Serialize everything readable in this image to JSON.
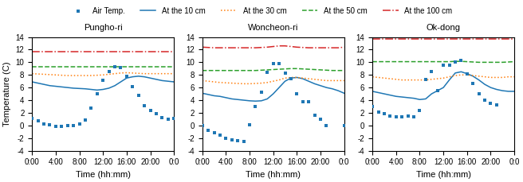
{
  "chart_data": [
    {
      "type": "line",
      "title": "Pungho-ri",
      "xlabel": "Time (hh:mm)",
      "ylabel": "Temperature (C)",
      "x": [
        0,
        1,
        2,
        3,
        4,
        5,
        6,
        7,
        8,
        9,
        10,
        11,
        12,
        13,
        14,
        15,
        16,
        17,
        18,
        19,
        20,
        21,
        22,
        23,
        24
      ],
      "xlim": [
        0,
        24
      ],
      "xticks": [
        {
          "value": 0,
          "label": "0:00"
        },
        {
          "value": 4,
          "label": "4:00"
        },
        {
          "value": 8,
          "label": "8:00"
        },
        {
          "value": 12,
          "label": "12:00"
        },
        {
          "value": 16,
          "label": "16:00"
        },
        {
          "value": 20,
          "label": "20:00"
        },
        {
          "value": 24,
          "label": "0:0"
        }
      ],
      "ylim": [
        -4,
        14
      ],
      "yticks": [
        -4,
        -2,
        0,
        2,
        4,
        6,
        8,
        10,
        12,
        14
      ],
      "legend": "upper center",
      "series": [
        {
          "name": "Air Temp.",
          "type": "scatter",
          "marker": "s",
          "x": [
            0,
            1,
            2,
            3,
            4,
            5,
            6,
            7,
            8,
            9,
            10,
            11,
            12,
            13,
            14,
            15,
            16,
            17,
            18,
            19,
            20,
            21,
            22,
            23,
            24
          ],
          "values": [
            1.1,
            0.7,
            0.2,
            0.1,
            -0.1,
            -0.1,
            0.0,
            0.0,
            0.2,
            0.8,
            2.8,
            5.0,
            7.1,
            8.5,
            9.3,
            9.2,
            7.8,
            6.1,
            4.7,
            3.1,
            2.4,
            1.9,
            1.2,
            1.0,
            1.1
          ]
        },
        {
          "name": "At the 10 cm",
          "type": "line",
          "line_style": "solid",
          "values": [
            6.9,
            6.7,
            6.5,
            6.3,
            6.2,
            6.1,
            6.0,
            5.9,
            5.85,
            5.8,
            5.7,
            5.6,
            5.7,
            5.9,
            6.3,
            6.9,
            7.5,
            7.7,
            7.8,
            7.7,
            7.5,
            7.3,
            7.1,
            7.0,
            6.9
          ]
        },
        {
          "name": "At the 30 cm",
          "type": "line",
          "line_style": "dotted",
          "values": [
            8.2,
            8.15,
            8.1,
            8.05,
            8.0,
            7.95,
            7.9,
            7.9,
            7.9,
            7.9,
            7.9,
            7.95,
            8.0,
            8.1,
            8.2,
            8.3,
            8.35,
            8.3,
            8.25,
            8.2,
            8.2,
            8.2,
            8.2,
            8.2,
            8.2
          ]
        },
        {
          "name": "At the 50 cm",
          "type": "line",
          "line_style": "dashed",
          "values": [
            9.3,
            9.3,
            9.3,
            9.3,
            9.3,
            9.3,
            9.3,
            9.3,
            9.3,
            9.3,
            9.3,
            9.3,
            9.3,
            9.3,
            9.3,
            9.3,
            9.3,
            9.3,
            9.3,
            9.3,
            9.3,
            9.3,
            9.3,
            9.3,
            9.3
          ]
        },
        {
          "name": "At the 100 cm",
          "type": "line",
          "line_style": "dashdot",
          "values": [
            11.7,
            11.7,
            11.7,
            11.7,
            11.7,
            11.7,
            11.7,
            11.7,
            11.7,
            11.7,
            11.7,
            11.7,
            11.7,
            11.7,
            11.7,
            11.7,
            11.7,
            11.7,
            11.7,
            11.7,
            11.7,
            11.7,
            11.7,
            11.7,
            11.7
          ]
        }
      ]
    },
    {
      "type": "line",
      "title": "Woncheon-ri",
      "xlabel": "Time (hh:mm)",
      "x": [
        0,
        1,
        2,
        3,
        4,
        5,
        6,
        7,
        8,
        9,
        10,
        11,
        12,
        13,
        14,
        15,
        16,
        17,
        18,
        19,
        20,
        21,
        22,
        23,
        24
      ],
      "xlim": [
        0,
        24
      ],
      "xticks": [
        {
          "value": 0,
          "label": "0:00"
        },
        {
          "value": 4,
          "label": "4:00"
        },
        {
          "value": 8,
          "label": "8:00"
        },
        {
          "value": 12,
          "label": "12:00"
        },
        {
          "value": 16,
          "label": "16:00"
        },
        {
          "value": 20,
          "label": "20:00"
        },
        {
          "value": 24,
          "label": "0:0"
        }
      ],
      "ylim": [
        -4,
        14
      ],
      "yticks": [
        -4,
        -2,
        0,
        2,
        4,
        6,
        8,
        10,
        12,
        14
      ],
      "legend": "upper center",
      "series": [
        {
          "name": "Air Temp.",
          "type": "scatter",
          "marker": "s",
          "x": [
            0,
            1,
            2,
            3,
            4,
            5,
            6,
            7,
            8,
            9,
            10,
            11,
            12,
            13,
            14,
            15,
            16,
            17,
            18,
            19,
            20,
            21,
            24
          ],
          "values": [
            0.0,
            -0.8,
            -1.1,
            -1.5,
            -2.0,
            -2.3,
            -2.4,
            -2.5,
            0.1,
            3.0,
            5.2,
            8.4,
            9.8,
            9.8,
            8.3,
            7.4,
            5.0,
            3.7,
            3.8,
            1.6,
            1.0,
            0.0,
            0.0
          ]
        },
        {
          "name": "At the 10 cm",
          "type": "line",
          "line_style": "solid",
          "values": [
            5.1,
            4.9,
            4.7,
            4.6,
            4.4,
            4.2,
            4.1,
            4.0,
            3.9,
            3.85,
            3.9,
            4.2,
            5.0,
            6.0,
            7.0,
            7.5,
            7.6,
            7.4,
            7.0,
            6.6,
            6.3,
            6.0,
            5.8,
            5.5,
            5.1
          ]
        },
        {
          "name": "At the 30 cm",
          "type": "line",
          "line_style": "dotted",
          "values": [
            7.1,
            7.0,
            6.9,
            6.8,
            6.75,
            6.7,
            6.65,
            6.6,
            6.6,
            6.65,
            6.7,
            6.8,
            7.0,
            7.2,
            7.5,
            7.6,
            7.6,
            7.5,
            7.4,
            7.3,
            7.2,
            7.1,
            7.1,
            7.1,
            7.1
          ]
        },
        {
          "name": "At the 50 cm",
          "type": "line",
          "line_style": "dashed",
          "values": [
            8.7,
            8.7,
            8.7,
            8.7,
            8.7,
            8.7,
            8.7,
            8.7,
            8.7,
            8.7,
            8.75,
            8.8,
            8.85,
            8.9,
            8.95,
            9.0,
            9.0,
            8.95,
            8.9,
            8.85,
            8.8,
            8.75,
            8.7,
            8.7,
            8.7
          ]
        },
        {
          "name": "At the 100 cm",
          "type": "line",
          "line_style": "dashdot",
          "values": [
            12.4,
            12.35,
            12.3,
            12.3,
            12.3,
            12.3,
            12.3,
            12.3,
            12.3,
            12.3,
            12.35,
            12.4,
            12.5,
            12.6,
            12.6,
            12.5,
            12.4,
            12.35,
            12.3,
            12.3,
            12.3,
            12.3,
            12.3,
            12.3,
            12.4
          ]
        }
      ]
    },
    {
      "type": "line",
      "title": "Ok-dong",
      "xlabel": "Time (hh:mm)",
      "x": [
        0,
        1,
        2,
        3,
        4,
        5,
        6,
        7,
        8,
        9,
        10,
        11,
        12,
        13,
        14,
        15,
        16,
        17,
        18,
        19,
        20,
        21,
        22,
        23,
        24
      ],
      "xlim": [
        0,
        24
      ],
      "xticks": [
        {
          "value": 0,
          "label": "0:00"
        },
        {
          "value": 4,
          "label": "4:00"
        },
        {
          "value": 8,
          "label": "8:00"
        },
        {
          "value": 12,
          "label": "12:00"
        },
        {
          "value": 16,
          "label": "16:00"
        },
        {
          "value": 20,
          "label": "20:00"
        },
        {
          "value": 24,
          "label": "0:0"
        }
      ],
      "ylim": [
        -4,
        14
      ],
      "yticks": [
        -4,
        -2,
        0,
        2,
        4,
        6,
        8,
        10,
        12,
        14
      ],
      "legend": "upper center",
      "series": [
        {
          "name": "Air Temp.",
          "type": "scatter",
          "marker": "s",
          "x": [
            0,
            1,
            2,
            3,
            4,
            5,
            6,
            7,
            8,
            9,
            10,
            11,
            12,
            13,
            14,
            15,
            16,
            17,
            18,
            19,
            20,
            21
          ],
          "values": [
            3.0,
            2.1,
            1.8,
            1.5,
            1.4,
            1.4,
            1.5,
            1.4,
            2.4,
            7.3,
            8.5,
            5.5,
            9.5,
            9.5,
            10.1,
            10.3,
            8.1,
            6.7,
            5.0,
            4.0,
            3.5,
            3.2
          ]
        },
        {
          "name": "At the 10 cm",
          "type": "line",
          "line_style": "solid",
          "values": [
            5.4,
            5.2,
            5.0,
            4.8,
            4.6,
            4.5,
            4.4,
            4.3,
            4.1,
            4.2,
            5.0,
            5.5,
            6.0,
            7.2,
            8.3,
            8.5,
            8.2,
            7.8,
            7.2,
            6.5,
            6.0,
            5.7,
            5.5,
            5.4,
            5.4
          ]
        },
        {
          "name": "At the 30 cm",
          "type": "line",
          "line_style": "dotted",
          "values": [
            7.7,
            7.6,
            7.5,
            7.4,
            7.3,
            7.2,
            7.2,
            7.2,
            7.2,
            7.2,
            7.3,
            7.4,
            7.5,
            7.7,
            7.9,
            8.0,
            8.0,
            7.9,
            7.8,
            7.7,
            7.6,
            7.6,
            7.6,
            7.7,
            7.7
          ]
        },
        {
          "name": "At the 50 cm",
          "type": "line",
          "line_style": "dashed",
          "values": [
            10.1,
            10.1,
            10.1,
            10.1,
            10.1,
            10.1,
            10.1,
            10.1,
            10.1,
            10.1,
            10.1,
            10.1,
            10.1,
            10.1,
            10.15,
            10.15,
            10.1,
            10.05,
            10.0,
            10.0,
            10.0,
            10.0,
            10.0,
            10.05,
            10.1
          ]
        },
        {
          "name": "At the 100 cm",
          "type": "line",
          "line_style": "dashdot",
          "values": [
            13.7,
            13.7,
            13.7,
            13.7,
            13.7,
            13.7,
            13.7,
            13.7,
            13.7,
            13.7,
            13.7,
            13.7,
            13.7,
            13.7,
            13.7,
            13.7,
            13.7,
            13.7,
            13.7,
            13.7,
            13.7,
            13.7,
            13.7,
            13.7,
            13.7
          ]
        }
      ]
    }
  ]
}
